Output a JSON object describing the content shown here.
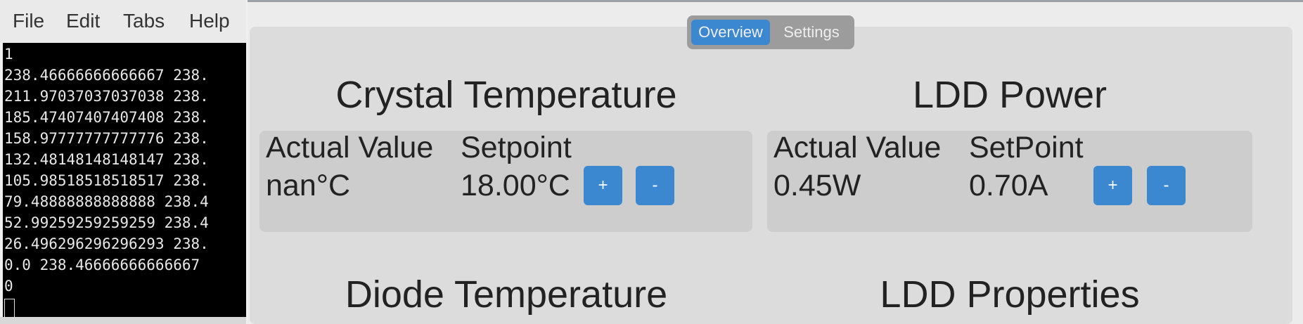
{
  "terminal": {
    "menu": [
      "File",
      "Edit",
      "Tabs",
      "Help"
    ],
    "lines": [
      "1",
      "238.46666666666667 238.",
      "211.97037037037038 238.",
      "185.47407407407408 238.",
      "158.97777777777776 238.",
      "132.48148148148147 238.",
      "105.98518518518517 238.",
      "79.48888888888888 238.4",
      "52.99259259259259 238.4",
      "26.496296296296293 238.",
      "0.0 238.46666666666667",
      "0"
    ]
  },
  "app": {
    "tabs": [
      "Overview",
      "Settings"
    ],
    "sections": [
      {
        "title": "Crystal Temperature",
        "actual_label": "Actual Value",
        "setpoint_label": "Setpoint",
        "actual": "nan°C",
        "setpoint": "18.00°C",
        "plus": "+",
        "minus": "-"
      },
      {
        "title": "LDD Power",
        "actual_label": "Actual Value",
        "setpoint_label": "SetPoint",
        "actual": "0.45W",
        "setpoint": "0.70A",
        "plus": "+",
        "minus": "-"
      }
    ],
    "more_titles": [
      "Diode Temperature",
      "LDD Properties"
    ]
  }
}
